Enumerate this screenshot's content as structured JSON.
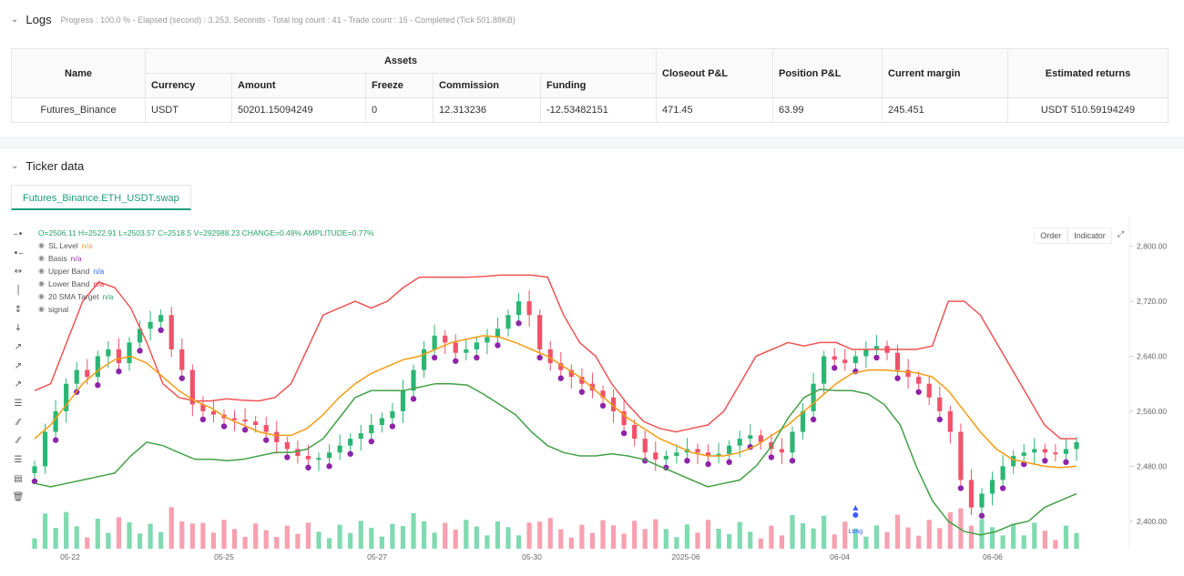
{
  "logs": {
    "title": "Logs",
    "summary": "Progress : 100.0 % - Elapsed (second) : 3.253. Seconds - Total log count : 41 - Trade count : 15 - Completed (Tick 501.88KB)"
  },
  "assets_table": {
    "headers": {
      "name": "Name",
      "assets": "Assets",
      "currency": "Currency",
      "amount": "Amount",
      "freeze": "Freeze",
      "commission": "Commission",
      "funding": "Funding",
      "closeout": "Closeout P&L",
      "position": "Position P&L",
      "margin": "Current margin",
      "returns": "Estimated returns"
    },
    "row": {
      "name": "Futures_Binance",
      "currency": "USDT",
      "amount": "50201.15094249",
      "freeze": "0",
      "commission": "12.313236",
      "funding": "-12.53482151",
      "closeout": "471.45",
      "position": "63.99",
      "margin": "245.451",
      "returns": "USDT 510.59194249"
    }
  },
  "ticker": {
    "title": "Ticker data",
    "tab": "Futures_Binance.ETH_USDT.swap",
    "ohlc": "O=2506.11 H=2522.91 L=2503.57 C=2518.5 V=292988.23 CHANGE=0.49% AMPLITUDE=0.77%",
    "legend": [
      {
        "label": "SL Level",
        "value": "n/a",
        "color": "#f0a030"
      },
      {
        "label": "Basis",
        "value": "n/a",
        "color": "#9c27b0"
      },
      {
        "label": "Upper Band",
        "value": "n/a",
        "color": "#2962ff"
      },
      {
        "label": "Lower Band",
        "value": "n/a",
        "color": "#e53935"
      },
      {
        "label": "20 SMA Target",
        "value": "n/a",
        "color": "#26a269"
      },
      {
        "label": "signal",
        "value": "",
        "color": "#555"
      }
    ],
    "buttons": {
      "order": "Order",
      "indicator": "Indicator"
    },
    "long_marker": "Long"
  },
  "chart_data": {
    "type": "line",
    "x_ticks": [
      "05-22",
      "05-25",
      "05-27",
      "05-30",
      "2025-06",
      "06-04",
      "06-06"
    ],
    "y_ticks": [
      "2,800.00",
      "2,720.00",
      "2,640.00",
      "2,560.00",
      "2,480.00",
      "2,400.00"
    ],
    "ylim": [
      2360,
      2830
    ],
    "close": [
      2480,
      2530,
      2560,
      2600,
      2620,
      2610,
      2640,
      2650,
      2630,
      2660,
      2680,
      2690,
      2700,
      2650,
      2620,
      2570,
      2560,
      2555,
      2550,
      2548,
      2545,
      2540,
      2530,
      2515,
      2505,
      2495,
      2490,
      2492,
      2500,
      2510,
      2520,
      2528,
      2540,
      2550,
      2560,
      2590,
      2620,
      2650,
      2670,
      2660,
      2645,
      2650,
      2660,
      2668,
      2680,
      2700,
      2720,
      2700,
      2650,
      2630,
      2620,
      2610,
      2600,
      2590,
      2580,
      2560,
      2540,
      2520,
      2500,
      2490,
      2495,
      2500,
      2505,
      2500,
      2495,
      2498,
      2510,
      2520,
      2525,
      2515,
      2505,
      2500,
      2530,
      2560,
      2600,
      2640,
      2635,
      2630,
      2640,
      2650,
      2655,
      2645,
      2620,
      2610,
      2600,
      2580,
      2560,
      2530,
      2460,
      2420,
      2440,
      2460,
      2480,
      2495,
      2500,
      2505,
      2500,
      2498,
      2505,
      2515
    ],
    "series": [
      {
        "name": "Upper Band",
        "color": "#f05454",
        "values": [
          2590,
          2600,
          2660,
          2720,
          2748,
          2740,
          2710,
          2660,
          2600,
          2580,
          2575,
          2575,
          2578,
          2576,
          2575,
          2580,
          2600,
          2650,
          2700,
          2710,
          2720,
          2710,
          2720,
          2740,
          2755,
          2755,
          2755,
          2755,
          2756,
          2758,
          2758,
          2758,
          2755,
          2700,
          2660,
          2640,
          2600,
          2570,
          2545,
          2535,
          2530,
          2535,
          2540,
          2560,
          2600,
          2640,
          2650,
          2660,
          2655,
          2660,
          2660,
          2650,
          2650,
          2650,
          2650,
          2650,
          2655,
          2720,
          2720,
          2700,
          2660,
          2620,
          2580,
          2540,
          2520,
          2520
        ]
      },
      {
        "name": "Basis",
        "color": "#f39c12",
        "values": [
          2520,
          2540,
          2570,
          2600,
          2620,
          2635,
          2640,
          2630,
          2610,
          2590,
          2575,
          2565,
          2550,
          2540,
          2530,
          2525,
          2525,
          2535,
          2555,
          2580,
          2600,
          2615,
          2625,
          2635,
          2640,
          2650,
          2660,
          2665,
          2670,
          2668,
          2660,
          2650,
          2640,
          2625,
          2610,
          2590,
          2570,
          2550,
          2535,
          2520,
          2510,
          2500,
          2495,
          2495,
          2500,
          2510,
          2525,
          2540,
          2560,
          2580,
          2600,
          2615,
          2620,
          2620,
          2618,
          2616,
          2610,
          2590,
          2560,
          2530,
          2505,
          2490,
          2485,
          2480,
          2478,
          2480
        ]
      },
      {
        "name": "Lower Band",
        "color": "#43a047",
        "values": [
          2455,
          2450,
          2455,
          2460,
          2465,
          2470,
          2495,
          2515,
          2510,
          2500,
          2490,
          2490,
          2488,
          2490,
          2495,
          2500,
          2500,
          2505,
          2520,
          2550,
          2580,
          2590,
          2590,
          2590,
          2595,
          2600,
          2600,
          2598,
          2585,
          2570,
          2555,
          2530,
          2510,
          2500,
          2495,
          2495,
          2498,
          2495,
          2490,
          2480,
          2470,
          2460,
          2450,
          2455,
          2460,
          2480,
          2510,
          2550,
          2580,
          2592,
          2590,
          2590,
          2585,
          2570,
          2540,
          2480,
          2430,
          2400,
          2385,
          2380,
          2385,
          2395,
          2400,
          2420,
          2430,
          2440
        ]
      }
    ]
  }
}
